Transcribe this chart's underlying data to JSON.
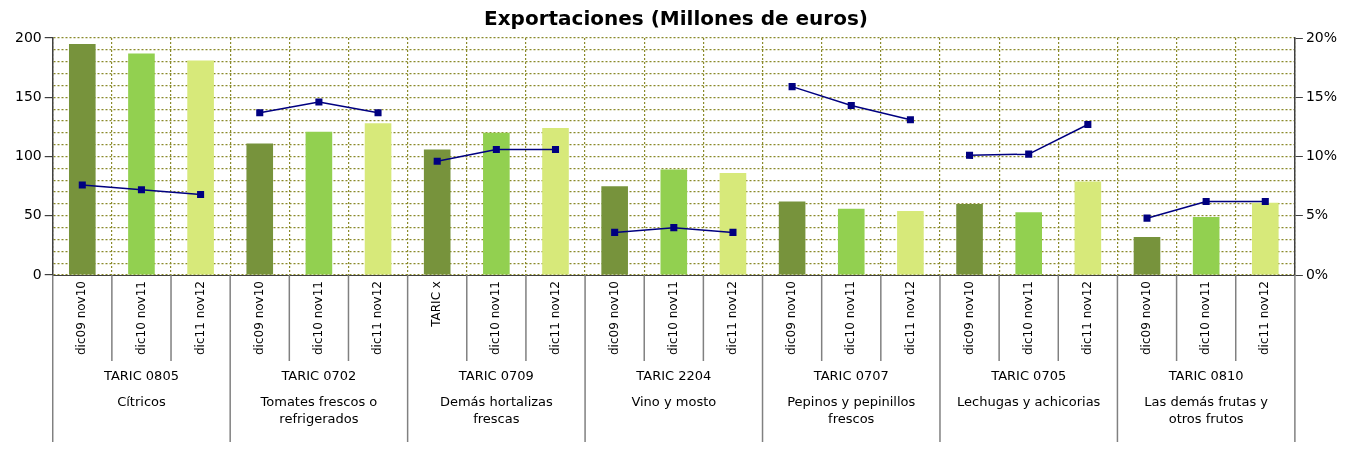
{
  "chart_data": {
    "type": "bar",
    "title": "Exportaciones (Millones de euros)",
    "categories": [
      "dic09 nov10",
      "dic10 nov11",
      "dic11 nov12",
      "dic09 nov10",
      "dic10 nov11",
      "dic11 nov12",
      "TARIC x",
      "dic10 nov11",
      "dic11 nov12",
      "dic09 nov10",
      "dic10 nov11",
      "dic11 nov12",
      "dic09 nov10",
      "dic10 nov11",
      "dic11 nov12",
      "dic09 nov10",
      "dic10 nov11",
      "dic11 nov12",
      "dic09 nov10",
      "dic10 nov11",
      "dic11 nov12"
    ],
    "series": [
      {
        "colors": [
          "#77933c",
          "#92d050",
          "#d7e97a",
          "#77933c",
          "#92d050",
          "#d7e97a",
          "#77933c",
          "#92d050",
          "#d7e97a",
          "#77933c",
          "#92d050",
          "#d7e97a",
          "#77933c",
          "#92d050",
          "#d7e97a",
          "#77933c",
          "#92d050",
          "#d7e97a",
          "#77933c",
          "#92d050",
          "#d7e97a"
        ],
        "values": [
          195,
          187,
          181,
          111,
          121,
          128,
          106,
          120,
          124,
          75,
          89,
          86,
          62,
          56,
          54,
          60,
          53,
          79,
          32,
          49,
          61
        ]
      },
      {
        "type": "line",
        "axis": "y2",
        "color": "#000080",
        "values": [
          7.6,
          7.2,
          6.8,
          null,
          null,
          null,
          null,
          null,
          null,
          null,
          null,
          null,
          null,
          null,
          null,
          null,
          null,
          null,
          null,
          null,
          null
        ]
      },
      {
        "type": "line",
        "axis": "y2",
        "color": "#000080",
        "values": [
          null,
          null,
          null,
          13.7,
          14.6,
          13.7,
          null,
          null,
          null,
          null,
          null,
          null,
          null,
          null,
          null,
          null,
          null,
          null,
          null,
          null,
          null
        ]
      },
      {
        "type": "line",
        "axis": "y2",
        "color": "#000080",
        "values": [
          null,
          null,
          null,
          null,
          null,
          null,
          9.6,
          10.6,
          10.6,
          null,
          null,
          null,
          null,
          null,
          null,
          null,
          null,
          null,
          null,
          null,
          null
        ]
      },
      {
        "type": "line",
        "axis": "y2",
        "color": "#000080",
        "values": [
          null,
          null,
          null,
          null,
          null,
          null,
          null,
          null,
          null,
          3.6,
          4.0,
          3.6,
          null,
          null,
          null,
          null,
          null,
          null,
          null,
          null,
          null
        ]
      },
      {
        "type": "line",
        "axis": "y2",
        "color": "#000080",
        "values": [
          null,
          null,
          null,
          null,
          null,
          null,
          null,
          null,
          null,
          null,
          null,
          null,
          15.9,
          14.3,
          13.1,
          null,
          null,
          null,
          null,
          null,
          null
        ]
      },
      {
        "type": "line",
        "axis": "y2",
        "color": "#000080",
        "values": [
          null,
          null,
          null,
          null,
          null,
          null,
          null,
          null,
          null,
          null,
          null,
          null,
          null,
          null,
          null,
          10.1,
          10.2,
          12.7,
          null,
          null,
          null
        ]
      },
      {
        "type": "line",
        "axis": "y2",
        "color": "#000080",
        "values": [
          null,
          null,
          null,
          null,
          null,
          null,
          null,
          null,
          null,
          null,
          null,
          null,
          null,
          null,
          null,
          null,
          null,
          null,
          4.8,
          6.2,
          6.2
        ]
      }
    ],
    "ylim": [
      0,
      200
    ],
    "yticks": [
      0,
      {
        "value": 10,
        "label": null
      },
      {
        "value": 20,
        "label": null
      },
      {
        "value": 30,
        "label": null
      },
      {
        "value": 40,
        "label": null
      },
      50,
      {
        "value": 60,
        "label": null
      },
      {
        "value": 70,
        "label": null
      },
      {
        "value": 80,
        "label": null
      },
      {
        "value": 90,
        "label": null
      },
      100,
      {
        "value": 110,
        "label": null
      },
      {
        "value": 120,
        "label": null
      },
      {
        "value": 130,
        "label": null
      },
      {
        "value": 140,
        "label": null
      },
      150,
      {
        "value": 160,
        "label": null
      },
      {
        "value": 170,
        "label": null
      },
      {
        "value": 180,
        "label": null
      },
      {
        "value": 190,
        "label": null
      },
      200
    ],
    "y2lim": [
      0,
      20
    ],
    "y2ticks": [
      {
        "value": 0,
        "label": "0%"
      },
      {
        "value": 5,
        "label": "5%"
      },
      {
        "value": 10,
        "label": "10%"
      },
      {
        "value": 15,
        "label": "15%"
      },
      {
        "value": 20,
        "label": "20%"
      }
    ],
    "grid": true,
    "marker": "square",
    "annotations": [
      "TARIC 0805",
      "Cítricos",
      "TARIC 0702",
      "Tomates frescos o refrigerados",
      "TARIC 0709",
      "Demás hortalizas frescas",
      "TARIC 2204",
      "Vino y mosto",
      "TARIC 0707",
      "Pepinos y pepinillos frescos",
      "TARIC 0705",
      "Lechugas y achicorias",
      "TARIC 0810",
      "Las demás frutas y otros frutos"
    ]
  }
}
